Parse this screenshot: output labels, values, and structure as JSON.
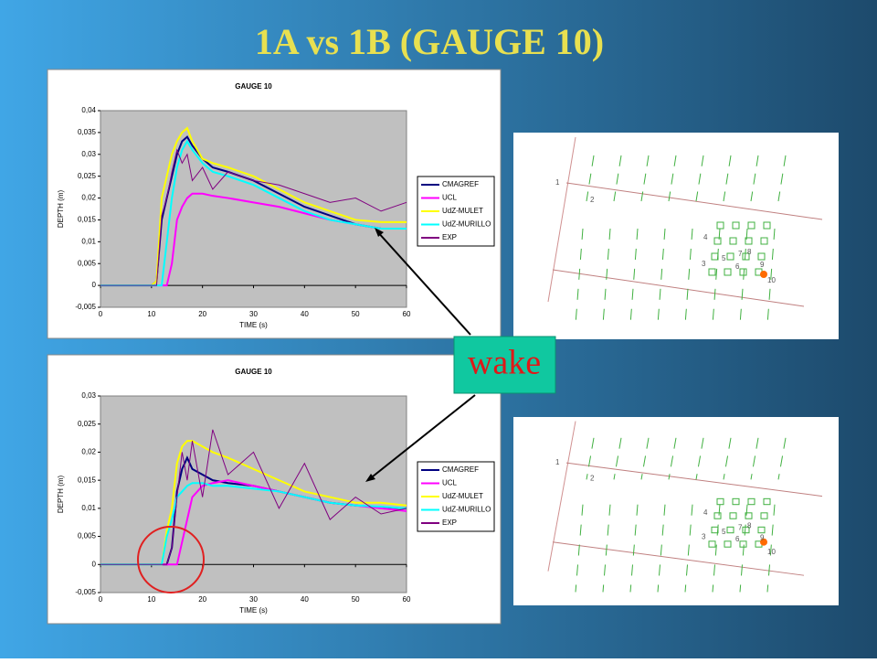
{
  "title": "1A vs 1B   (GAUGE 10)",
  "annotation": "wake",
  "chart_data": [
    {
      "type": "line",
      "title": "GAUGE 10",
      "x_label": "TIME (s)",
      "y_label": "DEPTH (m)",
      "legend": "right",
      "grid": false,
      "x": [
        0,
        5,
        10,
        11,
        12,
        13,
        14,
        15,
        16,
        17,
        18,
        20,
        22,
        25,
        30,
        35,
        40,
        45,
        50,
        55,
        60
      ],
      "xlim": [
        0,
        60
      ],
      "xticks": [
        0,
        10,
        20,
        30,
        40,
        50,
        60
      ],
      "ylim": [
        -0.005,
        0.04
      ],
      "yticks": [
        {
          "value": -0.005,
          "label": "-0,005"
        },
        0,
        {
          "value": 0.005,
          "label": "0,005"
        },
        {
          "value": 0.01,
          "label": "0,01"
        },
        {
          "value": 0.015,
          "label": "0,015"
        },
        {
          "value": 0.02,
          "label": "0,02"
        },
        {
          "value": 0.025,
          "label": "0,025"
        },
        {
          "value": 0.03,
          "label": "0,03"
        },
        {
          "value": 0.035,
          "label": "0,035"
        },
        {
          "value": 0.04,
          "label": "0,04"
        }
      ],
      "series": [
        {
          "name": "CMAGREF",
          "color": "#000080",
          "values": [
            0,
            0,
            0,
            0.001,
            0.015,
            0.02,
            0.025,
            0.03,
            0.033,
            0.034,
            0.032,
            0.029,
            0.027,
            0.026,
            0.024,
            0.021,
            0.018,
            0.016,
            0.014,
            0.013,
            0.013
          ]
        },
        {
          "name": "UCL",
          "color": "#ff00ff",
          "values": [
            0,
            0,
            0,
            0,
            0,
            0,
            0.005,
            0.015,
            0.018,
            0.02,
            0.021,
            0.021,
            0.0205,
            0.02,
            0.019,
            0.018,
            0.0165,
            0.015,
            0.014,
            0.013,
            0.013
          ]
        },
        {
          "name": "UdZ-MULET",
          "color": "#ffff00",
          "values": [
            0,
            0,
            0,
            0.001,
            0.02,
            0.025,
            0.03,
            0.033,
            0.035,
            0.036,
            0.033,
            0.029,
            0.028,
            0.027,
            0.025,
            0.022,
            0.019,
            0.017,
            0.015,
            0.0145,
            0.0145
          ]
        },
        {
          "name": "UdZ-MURILLO",
          "color": "#00ffff",
          "values": [
            0,
            0,
            0,
            0,
            0,
            0.01,
            0.02,
            0.027,
            0.031,
            0.033,
            0.031,
            0.028,
            0.026,
            0.025,
            0.023,
            0.02,
            0.017,
            0.015,
            0.014,
            0.013,
            0.013
          ]
        },
        {
          "name": "EXP",
          "color": "#800080",
          "values": [
            0,
            0,
            0,
            0,
            0.016,
            0.02,
            0.026,
            0.031,
            0.028,
            0.03,
            0.024,
            0.027,
            0.022,
            0.026,
            0.024,
            0.023,
            0.021,
            0.019,
            0.02,
            0.017,
            0.019
          ]
        }
      ]
    },
    {
      "type": "line",
      "title": "GAUGE 10",
      "x_label": "TIME (s)",
      "y_label": "DEPTH (m)",
      "legend": "right",
      "grid": false,
      "x": [
        0,
        5,
        10,
        11,
        12,
        13,
        14,
        15,
        16,
        17,
        18,
        20,
        22,
        25,
        30,
        35,
        40,
        45,
        50,
        55,
        60
      ],
      "xlim": [
        0,
        60
      ],
      "xticks": [
        0,
        10,
        20,
        30,
        40,
        50,
        60
      ],
      "ylim": [
        -0.005,
        0.03
      ],
      "yticks": [
        {
          "value": -0.005,
          "label": "-0,005"
        },
        0,
        {
          "value": 0.005,
          "label": "0,005"
        },
        {
          "value": 0.01,
          "label": "0,01"
        },
        {
          "value": 0.015,
          "label": "0,015"
        },
        {
          "value": 0.02,
          "label": "0,02"
        },
        {
          "value": 0.025,
          "label": "0,025"
        },
        {
          "value": 0.03,
          "label": "0,03"
        }
      ],
      "series": [
        {
          "name": "CMAGREF",
          "color": "#000080",
          "values": [
            0,
            0,
            0,
            0,
            0,
            0,
            0.003,
            0.013,
            0.017,
            0.019,
            0.017,
            0.016,
            0.015,
            0.0145,
            0.014,
            0.013,
            0.012,
            0.011,
            0.0105,
            0.0102,
            0.01
          ]
        },
        {
          "name": "UCL",
          "color": "#ff00ff",
          "values": [
            0,
            0,
            0,
            0,
            0,
            0,
            0,
            0,
            0.004,
            0.008,
            0.012,
            0.014,
            0.0145,
            0.015,
            0.014,
            0.013,
            0.012,
            0.011,
            0.0105,
            0.01,
            0.0095
          ]
        },
        {
          "name": "UdZ-MULET",
          "color": "#ffff00",
          "values": [
            0,
            0,
            0,
            0,
            0,
            0.006,
            0.01,
            0.018,
            0.021,
            0.022,
            0.022,
            0.021,
            0.02,
            0.019,
            0.017,
            0.015,
            0.013,
            0.012,
            0.011,
            0.011,
            0.0105
          ]
        },
        {
          "name": "UdZ-MURILLO",
          "color": "#00ffff",
          "values": [
            0,
            0,
            0,
            0,
            0,
            0.005,
            0.008,
            0.012,
            0.013,
            0.014,
            0.0145,
            0.0145,
            0.014,
            0.014,
            0.0135,
            0.013,
            0.012,
            0.011,
            0.0105,
            0.0103,
            0.01
          ]
        },
        {
          "name": "EXP",
          "color": "#800080",
          "values": [
            0,
            0,
            0,
            0,
            0,
            0,
            0.003,
            0.012,
            0.02,
            0.015,
            0.022,
            0.012,
            0.024,
            0.016,
            0.02,
            0.01,
            0.018,
            0.008,
            0.012,
            0.009,
            0.01
          ]
        }
      ]
    }
  ],
  "maps": [
    {
      "labels": [
        "1",
        "2",
        "3",
        "4",
        "5",
        "6",
        "7",
        "8",
        "9",
        "10"
      ]
    },
    {
      "labels": [
        "1",
        "2",
        "3",
        "4",
        "5",
        "6",
        "7",
        "8",
        "9",
        "10"
      ]
    }
  ]
}
